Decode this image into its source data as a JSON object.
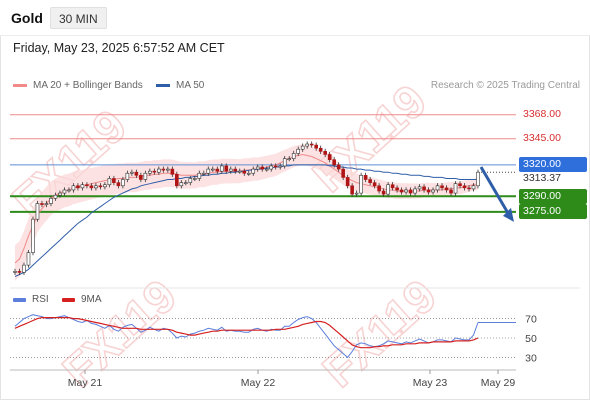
{
  "header": {
    "symbol": "Gold",
    "interval": "30 MIN"
  },
  "datetime": "Friday, May 23, 2025 6:57:52 AM CET",
  "legend": {
    "ma_bb": "MA 20 + Bollinger Bands",
    "ma50": "MA 50",
    "credit": "Research © 2025 Trading Central"
  },
  "watermark": "FX119",
  "colors": {
    "resistance": "#f08a8a",
    "pivot": "#5b8ed6",
    "support": "#2e8b1a",
    "arrow": "#2f5ea8",
    "rsi": "#5b7fdb",
    "ma9": "#d62020",
    "candle": "#b01515"
  },
  "levels": [
    {
      "label": "3368.00",
      "value": 3368,
      "type": "resistance"
    },
    {
      "label": "3345.00",
      "value": 3345,
      "type": "resistance"
    },
    {
      "label": "3320.00",
      "value": 3320,
      "type": "pivot"
    },
    {
      "label": "3290.00",
      "value": 3290,
      "type": "support"
    },
    {
      "label": "3275.00",
      "value": 3275,
      "type": "support"
    }
  ],
  "last_price": "3313.37",
  "chart_data": {
    "type": "line",
    "ylim": [
      3204,
      3386
    ],
    "x_ticks": [
      "May 21",
      "May 22",
      "May 23",
      "May 29"
    ],
    "series": [
      {
        "name": "Price",
        "values": [
          3218,
          3217,
          3224,
          3236,
          3268,
          3283,
          3282,
          3283,
          3288,
          3291,
          3293,
          3296,
          3296,
          3300,
          3298,
          3301,
          3300,
          3298,
          3300,
          3299,
          3301,
          3307,
          3303,
          3300,
          3306,
          3312,
          3313,
          3310,
          3306,
          3312,
          3314,
          3313,
          3316,
          3315,
          3316,
          3311,
          3300,
          3303,
          3303,
          3307,
          3307,
          3312,
          3312,
          3316,
          3316,
          3314,
          3319,
          3314,
          3316,
          3314,
          3314,
          3312,
          3312,
          3316,
          3318,
          3316,
          3316,
          3319,
          3318,
          3319,
          3326,
          3326,
          3331,
          3335,
          3338,
          3340,
          3339,
          3336,
          3333,
          3330,
          3325,
          3320,
          3316,
          3308,
          3300,
          3292,
          3293,
          3310,
          3306,
          3303,
          3300,
          3295,
          3292,
          3301,
          3298,
          3296,
          3294,
          3296,
          3293,
          3297,
          3299,
          3296,
          3294,
          3296,
          3300,
          3298,
          3296,
          3293,
          3302,
          3300,
          3298,
          3297,
          3300,
          3313
        ]
      },
      {
        "name": "MA 20",
        "values": [
          3226,
          3230,
          3240,
          3252,
          3262,
          3272,
          3278,
          3283,
          3288,
          3291,
          3293,
          3295,
          3296,
          3298,
          3299,
          3300,
          3301,
          3302,
          3303,
          3304,
          3305,
          3306,
          3306,
          3307,
          3307,
          3308,
          3308,
          3308,
          3309,
          3310,
          3310,
          3311,
          3311,
          3312,
          3312,
          3312,
          3311,
          3310,
          3310,
          3310,
          3310,
          3311,
          3311,
          3312,
          3313,
          3313,
          3314,
          3314,
          3314,
          3314,
          3314,
          3315,
          3315,
          3316,
          3316,
          3317,
          3318,
          3319,
          3320,
          3322,
          3324,
          3326,
          3328,
          3329,
          3330,
          3329,
          3328,
          3326,
          3324,
          3322,
          3319,
          3316,
          3313,
          3310,
          3307,
          3305,
          3303,
          3302,
          3301,
          3300,
          3299,
          3298,
          3297,
          3296,
          3296,
          3295,
          3295,
          3295,
          3295,
          3295,
          3295,
          3296,
          3296,
          3296,
          3296,
          3296,
          3297,
          3297,
          3298,
          3298,
          3299,
          3300,
          3301,
          3302
        ]
      },
      {
        "name": "MA 50",
        "values": [
          3213,
          3215,
          3217,
          3220,
          3224,
          3228,
          3232,
          3236,
          3240,
          3244,
          3248,
          3252,
          3256,
          3260,
          3264,
          3267,
          3270,
          3274,
          3277,
          3280,
          3283,
          3286,
          3289,
          3291,
          3293,
          3295,
          3297,
          3298,
          3300,
          3301,
          3302,
          3303,
          3304,
          3305,
          3306,
          3306,
          3307,
          3307,
          3308,
          3308,
          3309,
          3309,
          3310,
          3310,
          3311,
          3311,
          3312,
          3312,
          3313,
          3313,
          3314,
          3314,
          3315,
          3315,
          3316,
          3316,
          3317,
          3317,
          3318,
          3318,
          3319,
          3319,
          3320,
          3320,
          3320,
          3320,
          3320,
          3320,
          3320,
          3320,
          3319,
          3319,
          3318,
          3318,
          3317,
          3317,
          3316,
          3316,
          3315,
          3315,
          3314,
          3314,
          3313,
          3313,
          3312,
          3312,
          3311,
          3311,
          3310,
          3310,
          3310,
          3309,
          3309,
          3308,
          3308,
          3308,
          3307,
          3307,
          3307,
          3306,
          3306,
          3306,
          3306,
          3306
        ]
      },
      {
        "name": "RSI",
        "values": [
          62,
          66,
          70,
          72,
          74,
          73,
          72,
          70,
          70,
          71,
          72,
          73,
          71,
          69,
          67,
          66,
          68,
          65,
          64,
          62,
          60,
          63,
          59,
          57,
          61,
          63,
          64,
          60,
          56,
          58,
          61,
          59,
          57,
          60,
          59,
          55,
          50,
          52,
          51,
          54,
          55,
          57,
          58,
          60,
          59,
          58,
          61,
          57,
          58,
          57,
          57,
          56,
          56,
          59,
          60,
          58,
          57,
          59,
          58,
          58,
          62,
          62,
          66,
          69,
          71,
          72,
          70,
          66,
          60,
          54,
          48,
          42,
          38,
          34,
          30,
          36,
          43,
          45,
          44,
          42,
          41,
          42,
          44,
          47,
          46,
          45,
          44,
          46,
          45,
          47,
          49,
          47,
          45,
          46,
          48,
          48,
          47,
          46,
          50,
          49,
          48,
          48,
          53,
          66
        ]
      },
      {
        "name": "9MA",
        "values": [
          60,
          62,
          64,
          66,
          68,
          70,
          71,
          71,
          71,
          71,
          71,
          71,
          71,
          70,
          70,
          69,
          68,
          67,
          66,
          65,
          64,
          63,
          62,
          61,
          60,
          60,
          60,
          60,
          59,
          59,
          59,
          59,
          59,
          59,
          59,
          58,
          56,
          55,
          54,
          53,
          53,
          54,
          55,
          56,
          57,
          57,
          58,
          58,
          58,
          58,
          58,
          58,
          58,
          58,
          58,
          58,
          58,
          58,
          59,
          59,
          59,
          60,
          61,
          62,
          64,
          65,
          66,
          67,
          67,
          66,
          63,
          59,
          55,
          51,
          47,
          43,
          41,
          40,
          40,
          40,
          41,
          41,
          42,
          42,
          43,
          43,
          43,
          44,
          44,
          44,
          45,
          45,
          45,
          46,
          46,
          46,
          46,
          46,
          47,
          47,
          47,
          47,
          48,
          50
        ]
      }
    ],
    "rsi_ylim": [
      15,
      85
    ],
    "rsi_ticks": [
      {
        "label": "70",
        "value": 70
      },
      {
        "label": "50",
        "value": 50
      },
      {
        "label": "30",
        "value": 30
      }
    ]
  },
  "sub_legend": {
    "rsi": "RSI",
    "ma9": "9MA"
  }
}
